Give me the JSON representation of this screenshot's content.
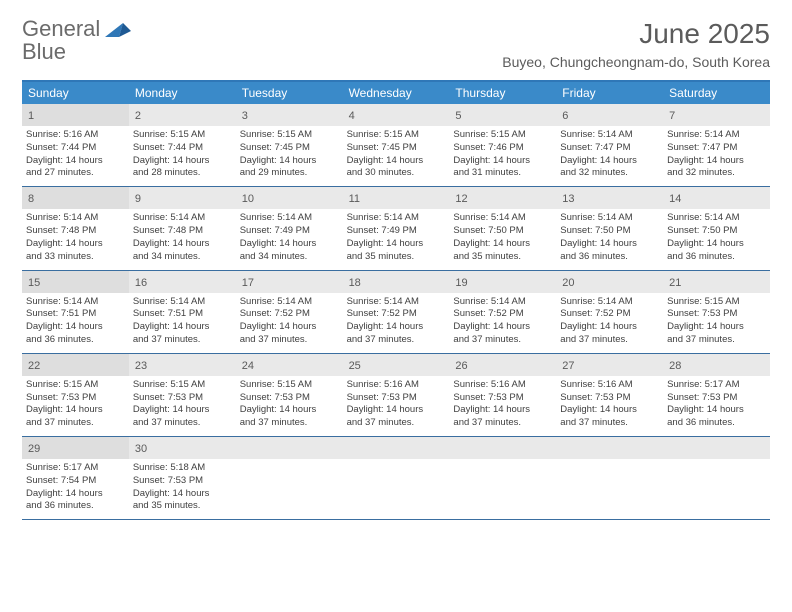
{
  "colors": {
    "header_bar": "#3a8ac9",
    "header_border": "#2f77b7",
    "week_border": "#3a6ea0",
    "daynum_bg": "#e9e9e9",
    "daynum_bg_firstcol": "#dedede",
    "title_color": "#5b5b5b",
    "text_color": "#3f3f3f",
    "logo_gray": "#6b6b6b",
    "logo_blue": "#2f77b7"
  },
  "logo": {
    "word1": "General",
    "word2": "Blue"
  },
  "title": "June 2025",
  "subtitle": "Buyeo, Chungcheongnam-do, South Korea",
  "weekdays": [
    "Sunday",
    "Monday",
    "Tuesday",
    "Wednesday",
    "Thursday",
    "Friday",
    "Saturday"
  ],
  "weeks": [
    [
      {
        "n": "1",
        "sr": "Sunrise: 5:16 AM",
        "ss": "Sunset: 7:44 PM",
        "d1": "Daylight: 14 hours",
        "d2": "and 27 minutes."
      },
      {
        "n": "2",
        "sr": "Sunrise: 5:15 AM",
        "ss": "Sunset: 7:44 PM",
        "d1": "Daylight: 14 hours",
        "d2": "and 28 minutes."
      },
      {
        "n": "3",
        "sr": "Sunrise: 5:15 AM",
        "ss": "Sunset: 7:45 PM",
        "d1": "Daylight: 14 hours",
        "d2": "and 29 minutes."
      },
      {
        "n": "4",
        "sr": "Sunrise: 5:15 AM",
        "ss": "Sunset: 7:45 PM",
        "d1": "Daylight: 14 hours",
        "d2": "and 30 minutes."
      },
      {
        "n": "5",
        "sr": "Sunrise: 5:15 AM",
        "ss": "Sunset: 7:46 PM",
        "d1": "Daylight: 14 hours",
        "d2": "and 31 minutes."
      },
      {
        "n": "6",
        "sr": "Sunrise: 5:14 AM",
        "ss": "Sunset: 7:47 PM",
        "d1": "Daylight: 14 hours",
        "d2": "and 32 minutes."
      },
      {
        "n": "7",
        "sr": "Sunrise: 5:14 AM",
        "ss": "Sunset: 7:47 PM",
        "d1": "Daylight: 14 hours",
        "d2": "and 32 minutes."
      }
    ],
    [
      {
        "n": "8",
        "sr": "Sunrise: 5:14 AM",
        "ss": "Sunset: 7:48 PM",
        "d1": "Daylight: 14 hours",
        "d2": "and 33 minutes."
      },
      {
        "n": "9",
        "sr": "Sunrise: 5:14 AM",
        "ss": "Sunset: 7:48 PM",
        "d1": "Daylight: 14 hours",
        "d2": "and 34 minutes."
      },
      {
        "n": "10",
        "sr": "Sunrise: 5:14 AM",
        "ss": "Sunset: 7:49 PM",
        "d1": "Daylight: 14 hours",
        "d2": "and 34 minutes."
      },
      {
        "n": "11",
        "sr": "Sunrise: 5:14 AM",
        "ss": "Sunset: 7:49 PM",
        "d1": "Daylight: 14 hours",
        "d2": "and 35 minutes."
      },
      {
        "n": "12",
        "sr": "Sunrise: 5:14 AM",
        "ss": "Sunset: 7:50 PM",
        "d1": "Daylight: 14 hours",
        "d2": "and 35 minutes."
      },
      {
        "n": "13",
        "sr": "Sunrise: 5:14 AM",
        "ss": "Sunset: 7:50 PM",
        "d1": "Daylight: 14 hours",
        "d2": "and 36 minutes."
      },
      {
        "n": "14",
        "sr": "Sunrise: 5:14 AM",
        "ss": "Sunset: 7:50 PM",
        "d1": "Daylight: 14 hours",
        "d2": "and 36 minutes."
      }
    ],
    [
      {
        "n": "15",
        "sr": "Sunrise: 5:14 AM",
        "ss": "Sunset: 7:51 PM",
        "d1": "Daylight: 14 hours",
        "d2": "and 36 minutes."
      },
      {
        "n": "16",
        "sr": "Sunrise: 5:14 AM",
        "ss": "Sunset: 7:51 PM",
        "d1": "Daylight: 14 hours",
        "d2": "and 37 minutes."
      },
      {
        "n": "17",
        "sr": "Sunrise: 5:14 AM",
        "ss": "Sunset: 7:52 PM",
        "d1": "Daylight: 14 hours",
        "d2": "and 37 minutes."
      },
      {
        "n": "18",
        "sr": "Sunrise: 5:14 AM",
        "ss": "Sunset: 7:52 PM",
        "d1": "Daylight: 14 hours",
        "d2": "and 37 minutes."
      },
      {
        "n": "19",
        "sr": "Sunrise: 5:14 AM",
        "ss": "Sunset: 7:52 PM",
        "d1": "Daylight: 14 hours",
        "d2": "and 37 minutes."
      },
      {
        "n": "20",
        "sr": "Sunrise: 5:14 AM",
        "ss": "Sunset: 7:52 PM",
        "d1": "Daylight: 14 hours",
        "d2": "and 37 minutes."
      },
      {
        "n": "21",
        "sr": "Sunrise: 5:15 AM",
        "ss": "Sunset: 7:53 PM",
        "d1": "Daylight: 14 hours",
        "d2": "and 37 minutes."
      }
    ],
    [
      {
        "n": "22",
        "sr": "Sunrise: 5:15 AM",
        "ss": "Sunset: 7:53 PM",
        "d1": "Daylight: 14 hours",
        "d2": "and 37 minutes."
      },
      {
        "n": "23",
        "sr": "Sunrise: 5:15 AM",
        "ss": "Sunset: 7:53 PM",
        "d1": "Daylight: 14 hours",
        "d2": "and 37 minutes."
      },
      {
        "n": "24",
        "sr": "Sunrise: 5:15 AM",
        "ss": "Sunset: 7:53 PM",
        "d1": "Daylight: 14 hours",
        "d2": "and 37 minutes."
      },
      {
        "n": "25",
        "sr": "Sunrise: 5:16 AM",
        "ss": "Sunset: 7:53 PM",
        "d1": "Daylight: 14 hours",
        "d2": "and 37 minutes."
      },
      {
        "n": "26",
        "sr": "Sunrise: 5:16 AM",
        "ss": "Sunset: 7:53 PM",
        "d1": "Daylight: 14 hours",
        "d2": "and 37 minutes."
      },
      {
        "n": "27",
        "sr": "Sunrise: 5:16 AM",
        "ss": "Sunset: 7:53 PM",
        "d1": "Daylight: 14 hours",
        "d2": "and 37 minutes."
      },
      {
        "n": "28",
        "sr": "Sunrise: 5:17 AM",
        "ss": "Sunset: 7:53 PM",
        "d1": "Daylight: 14 hours",
        "d2": "and 36 minutes."
      }
    ],
    [
      {
        "n": "29",
        "sr": "Sunrise: 5:17 AM",
        "ss": "Sunset: 7:54 PM",
        "d1": "Daylight: 14 hours",
        "d2": "and 36 minutes."
      },
      {
        "n": "30",
        "sr": "Sunrise: 5:18 AM",
        "ss": "Sunset: 7:53 PM",
        "d1": "Daylight: 14 hours",
        "d2": "and 35 minutes."
      },
      {
        "empty": true
      },
      {
        "empty": true
      },
      {
        "empty": true
      },
      {
        "empty": true
      },
      {
        "empty": true
      }
    ]
  ]
}
